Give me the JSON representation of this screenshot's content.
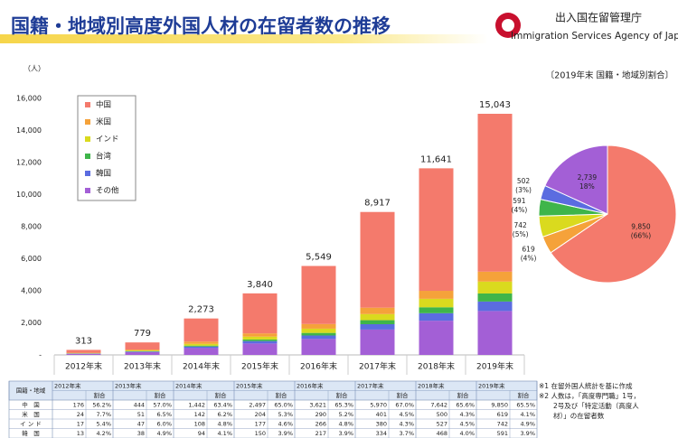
{
  "header": {
    "title": "国籍・地域別高度外国人材の在留者数の推移",
    "agency": "出入国在留管理庁",
    "agency_en": "Immigration Services Agency of Japan"
  },
  "chart_data": [
    {
      "type": "bar",
      "stacked": true,
      "y_unit": "（人）",
      "categories": [
        "2012年末",
        "2013年末",
        "2014年末",
        "2015年末",
        "2016年末",
        "2017年末",
        "2018年末",
        "2019年末"
      ],
      "series": [
        {
          "name": "中国",
          "color": "#f47a6c",
          "values": [
            176,
            444,
            1442,
            2497,
            3621,
            5970,
            7642,
            9850
          ]
        },
        {
          "name": "米国",
          "color": "#f5a23a",
          "values": [
            24,
            51,
            142,
            204,
            290,
            401,
            500,
            619
          ]
        },
        {
          "name": "インド",
          "color": "#dada1e",
          "values": [
            17,
            47,
            108,
            177,
            266,
            380,
            527,
            742
          ]
        },
        {
          "name": "台湾",
          "color": "#3fb54a",
          "values": [
            10,
            25,
            60,
            100,
            160,
            250,
            370,
            502
          ]
        },
        {
          "name": "韓国",
          "color": "#5b6ce0",
          "values": [
            13,
            38,
            94,
            150,
            217,
            334,
            468,
            591
          ]
        },
        {
          "name": "その他",
          "color": "#a35fd6",
          "values": [
            73,
            174,
            427,
            712,
            995,
            1582,
            2134,
            2739
          ]
        }
      ],
      "totals": [
        313,
        779,
        2273,
        3840,
        5549,
        8917,
        11641,
        15043
      ],
      "totals_labels": [
        "313",
        "779",
        "2,273",
        "3,840",
        "5,549",
        "8,917",
        "11,641",
        "15,043"
      ],
      "ylim": [
        0,
        16000
      ],
      "yticks": [
        {
          "value": 0,
          "label": "-"
        },
        {
          "value": 2000,
          "label": "2,000"
        },
        {
          "value": 4000,
          "label": "4,000"
        },
        {
          "value": 6000,
          "label": "6,000"
        },
        {
          "value": 8000,
          "label": "8,000"
        },
        {
          "value": 10000,
          "label": "10,000"
        },
        {
          "value": 12000,
          "label": "12,000"
        },
        {
          "value": 14000,
          "label": "14,000"
        },
        {
          "value": 16000,
          "label": "16,000"
        }
      ],
      "grid": false,
      "legend": "upper left"
    },
    {
      "type": "pie",
      "title": "〔2019年末 国籍・地域別割合〕",
      "values": [
        9850,
        619,
        742,
        591,
        502,
        2739
      ],
      "colors": [
        "#f47a6c",
        "#f5a23a",
        "#dada1e",
        "#3fb54a",
        "#5b6ce0",
        "#a35fd6"
      ],
      "value_labels": [
        "9,850",
        "619",
        "742",
        "591",
        "502",
        "2,739"
      ],
      "percent_labels": [
        "(66%)",
        "(4%)",
        "(5%)",
        "(4%)",
        "(3%)",
        "18%"
      ]
    }
  ],
  "table": {
    "header_label": "国籍・地域",
    "share_label": "割合",
    "years": [
      "2012年末",
      "2013年末",
      "2014年末",
      "2015年末",
      "2016年末",
      "2017年末",
      "2018年末",
      "2019年末"
    ],
    "rows": [
      {
        "label": "中　国",
        "cells": [
          "176",
          "56.2%",
          "444",
          "57.0%",
          "1,442",
          "63.4%",
          "2,497",
          "65.0%",
          "3,621",
          "65.3%",
          "5,970",
          "67.0%",
          "7,642",
          "65.6%",
          "9,850",
          "65.5%"
        ]
      },
      {
        "label": "米　国",
        "cells": [
          "24",
          "7.7%",
          "51",
          "6.5%",
          "142",
          "6.2%",
          "204",
          "5.3%",
          "290",
          "5.2%",
          "401",
          "4.5%",
          "500",
          "4.3%",
          "619",
          "4.1%"
        ]
      },
      {
        "label": "イ ン ド",
        "cells": [
          "17",
          "5.4%",
          "47",
          "6.0%",
          "108",
          "4.8%",
          "177",
          "4.6%",
          "266",
          "4.8%",
          "380",
          "4.3%",
          "527",
          "4.5%",
          "742",
          "4.9%"
        ]
      },
      {
        "label": "韓　国",
        "cells": [
          "13",
          "4.2%",
          "38",
          "4.9%",
          "94",
          "4.1%",
          "150",
          "3.9%",
          "217",
          "3.9%",
          "334",
          "3.7%",
          "468",
          "4.0%",
          "591",
          "3.9%"
        ]
      }
    ]
  },
  "notes": [
    "※1 在留外国人統計を基に作成",
    "※2 人数は，「高度専門職」1号，",
    "2号及び「特定活動（高度人",
    "材）」の在留者数"
  ]
}
